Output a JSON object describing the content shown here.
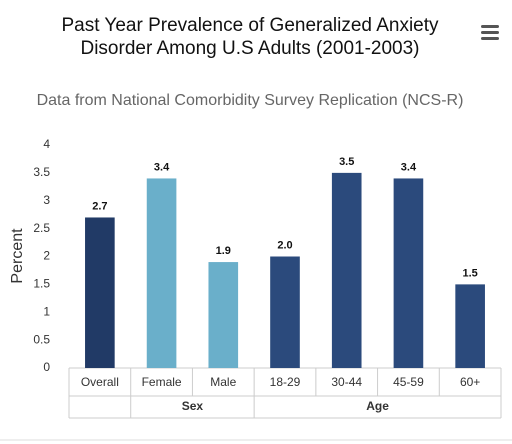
{
  "chart_data": {
    "type": "bar",
    "title": "Past Year Prevalence of Generalized Anxiety Disorder Among U.S Adults (2001-2003)",
    "subtitle": "Data from National Comorbidity Survey Replication (NCS-R)",
    "y_label": "Percent",
    "categories": [
      "Overall",
      "Female",
      "Male",
      "18-29",
      "30-44",
      "45-59",
      "60+"
    ],
    "category_groups": [
      null,
      "Sex",
      "Sex",
      "Age",
      "Age",
      "Age",
      "Age"
    ],
    "values": [
      2.7,
      3.4,
      1.9,
      2.0,
      3.5,
      3.4,
      1.5
    ],
    "value_labels": [
      "2.7",
      "3.4",
      "1.9",
      "2.0",
      "3.5",
      "3.4",
      "1.5"
    ],
    "colors": [
      "#213a66",
      "#6aafca",
      "#6aafca",
      "#2b4a7c",
      "#2b4a7c",
      "#2b4a7c",
      "#2b4a7c"
    ],
    "ylim": [
      0,
      4
    ],
    "yticks": [
      0,
      0.5,
      1,
      1.5,
      2,
      2.5,
      3,
      3.5,
      4
    ],
    "grid": false
  }
}
